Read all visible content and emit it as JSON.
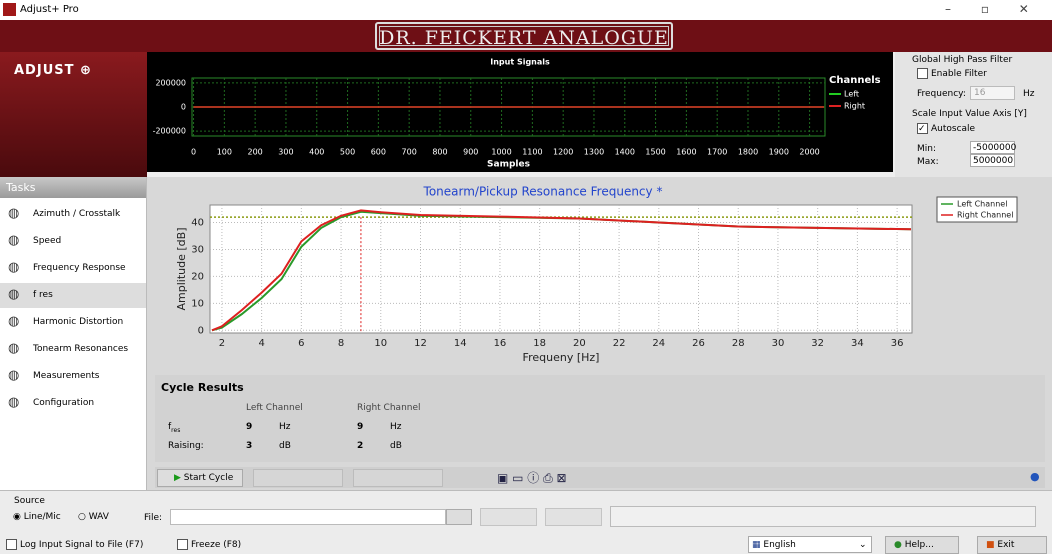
{
  "window_title": "Adjust+ Pro",
  "header": {
    "brand": "DR. FEICKERT ANALOGUE",
    "logo": "ADJUST ⊕"
  },
  "chart_data": [
    {
      "type": "line",
      "title": "Input Signals",
      "x_label": "Samples",
      "legend_title": "Channels",
      "x": [
        0,
        2047
      ],
      "series": [
        {
          "name": "Left",
          "color": "#22cc22",
          "values": [
            0,
            0
          ]
        },
        {
          "name": "Right",
          "color": "#dd2222",
          "values": [
            0,
            0
          ]
        }
      ],
      "xlim": [
        -5,
        2050
      ],
      "xticks": [
        0,
        100,
        200,
        300,
        400,
        500,
        600,
        700,
        800,
        900,
        1000,
        1100,
        1200,
        1300,
        1400,
        1500,
        1600,
        1700,
        1800,
        1900,
        2000
      ],
      "ylim": [
        -240000,
        240000
      ],
      "yticks": [
        200000,
        0,
        -200000
      ],
      "grid": true
    },
    {
      "type": "line",
      "title": "Tonearm/Pickup Resonance Frequency *",
      "x_label": "Frequeny [Hz]",
      "y_label": "Amplitude [dB]",
      "x": [
        1.5,
        2,
        3,
        4,
        5,
        6,
        7,
        8,
        9,
        10,
        12,
        16,
        20,
        24,
        28,
        32,
        36.7
      ],
      "series": [
        {
          "name": "Left Channel",
          "color": "#2a9a2a",
          "values": [
            0,
            1,
            6,
            12,
            19,
            31,
            38,
            42,
            44,
            43.5,
            42.5,
            42,
            41.5,
            40,
            38.5,
            38,
            37.5
          ]
        },
        {
          "name": "Right Channel",
          "color": "#dd2020",
          "values": [
            0,
            1.5,
            7.5,
            14,
            21,
            33,
            39,
            42.5,
            44.5,
            43.8,
            42.8,
            42.2,
            41.5,
            40,
            38.5,
            38,
            37.5
          ]
        }
      ],
      "hline": 42,
      "vline": 9,
      "xlim": [
        1.4,
        36.75
      ],
      "xticks": [
        2,
        4,
        6,
        8,
        10,
        12,
        14,
        16,
        18,
        20,
        22,
        24,
        26,
        28,
        30,
        32,
        34,
        36
      ],
      "ylim": [
        -1,
        46.5
      ],
      "yticks": [
        0,
        10,
        20,
        30,
        40
      ],
      "grid": true,
      "legend": "top-right"
    }
  ],
  "filter": {
    "title": "Global High Pass Filter",
    "enable": "Enable Filter",
    "freq_label": "Frequency:",
    "freq": "16",
    "unit": "Hz",
    "scale_title": "Scale Input Value Axis [Y]",
    "autoscale": "Autoscale",
    "min_label": "Min:",
    "min": "-5000000",
    "max_label": "Max:",
    "max": "5000000"
  },
  "tasks": {
    "title": "Tasks",
    "items": [
      "Azimuth / Crosstalk",
      "Speed",
      "Frequency Response",
      "f res",
      "Harmonic Distortion",
      "Tonearm Resonances",
      "Measurements",
      "Configuration"
    ]
  },
  "results": {
    "title": "Cycle Results",
    "headers": [
      "Left Channel",
      "Right Channel"
    ],
    "rows": [
      {
        "label": "f",
        "sub": "res",
        "left": "9",
        "left_unit": "Hz",
        "right": "9",
        "right_unit": "Hz"
      },
      {
        "label": "Raising:",
        "left": "3",
        "left_unit": "dB",
        "right": "2",
        "right_unit": "dB"
      }
    ]
  },
  "start": "Start Cycle",
  "source": {
    "title": "Source",
    "line": "Line/Mic",
    "wav": "WAV",
    "file": "File:"
  },
  "footer": {
    "log": "Log Input Signal to File (F7)",
    "freeze": "Freeze (F8)",
    "lang": "English",
    "help": "Help...",
    "exit": "Exit"
  }
}
